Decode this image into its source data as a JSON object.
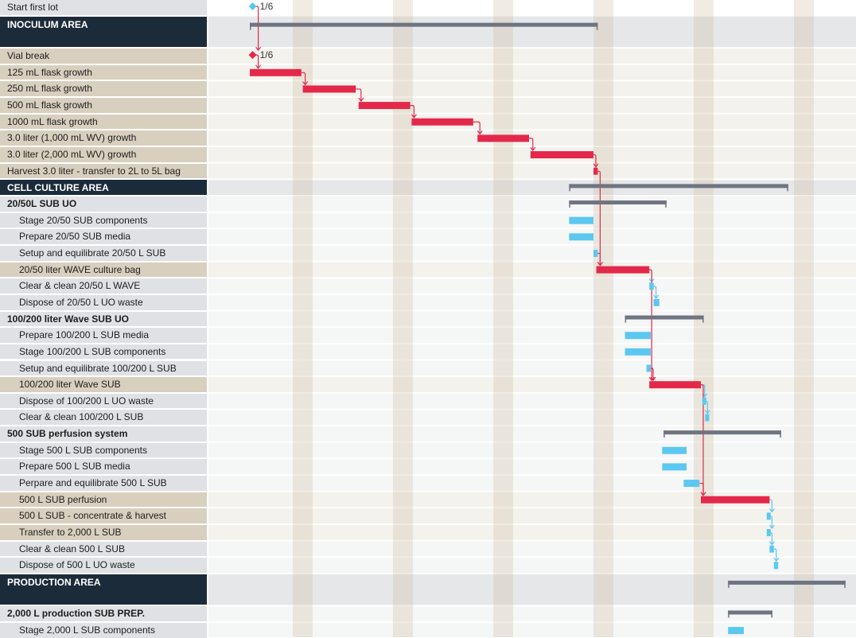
{
  "colors": {
    "critical": "#e4284b",
    "task": "#5bc8f0",
    "summary": "#6f7480",
    "header": "#1c2b3a",
    "tan": "#d9cfbe",
    "grey": "#dfe1e5",
    "weekend": "#e9e4d8"
  },
  "chart_data": {
    "type": "gantt",
    "time_unit": "days",
    "weekend_days": [
      3,
      10,
      17,
      24,
      31,
      38
    ],
    "rows": [
      {
        "label": "Start first lot",
        "kind": "milestone",
        "milestone": {
          "day": 0.2,
          "label": "1/6",
          "color": "task"
        }
      },
      {
        "label": "INOCULUM AREA",
        "kind": "header",
        "tall": true,
        "bar": {
          "start": 0,
          "end": 24.3,
          "type": "summary"
        }
      },
      {
        "label": "Vial break",
        "kind": "tan",
        "milestone": {
          "day": 0.2,
          "label": "1/6",
          "color": "critical"
        }
      },
      {
        "label": "125 mL flask growth",
        "kind": "tan",
        "bar": {
          "start": 0,
          "end": 3.6,
          "type": "critical"
        }
      },
      {
        "label": "250 mL flask growth",
        "kind": "tan",
        "bar": {
          "start": 3.7,
          "end": 7.4,
          "type": "critical"
        }
      },
      {
        "label": "500 mL flask growth",
        "kind": "tan",
        "bar": {
          "start": 7.6,
          "end": 11.2,
          "type": "critical"
        }
      },
      {
        "label": "1000 mL flask growth",
        "kind": "tan",
        "bar": {
          "start": 11.3,
          "end": 15.6,
          "type": "critical"
        }
      },
      {
        "label": "3.0 liter (1,000 mL WV) growth",
        "kind": "tan",
        "bar": {
          "start": 15.9,
          "end": 19.5,
          "type": "critical"
        }
      },
      {
        "label": "3.0 liter (2,000 mL WV) growth",
        "kind": "tan",
        "bar": {
          "start": 19.6,
          "end": 24,
          "type": "critical"
        }
      },
      {
        "label": "Harvest 3.0 liter - transfer to 2L to 5L bag",
        "kind": "tan",
        "bar": {
          "start": 24,
          "end": 24.3,
          "type": "critical"
        }
      },
      {
        "label": "CELL CULTURE AREA",
        "kind": "header",
        "bar": {
          "start": 22.3,
          "end": 37.6,
          "type": "summary"
        }
      },
      {
        "label": "20/50L SUB UO",
        "kind": "group",
        "bar": {
          "start": 22.3,
          "end": 29.1,
          "type": "summary"
        }
      },
      {
        "label": "Stage 20/50 SUB components",
        "kind": "grey",
        "bar": {
          "start": 22.3,
          "end": 24,
          "type": "task"
        }
      },
      {
        "label": "Prepare 20/50 SUB media",
        "kind": "grey",
        "bar": {
          "start": 22.3,
          "end": 24,
          "type": "task"
        }
      },
      {
        "label": "Setup and equilibrate 20/50 L SUB",
        "kind": "grey",
        "bar": {
          "start": 24,
          "end": 24.3,
          "type": "task"
        }
      },
      {
        "label": "20/50 liter WAVE culture bag",
        "kind": "tan",
        "bar": {
          "start": 24.2,
          "end": 27.9,
          "type": "critical"
        }
      },
      {
        "label": "Clear & clean 20/50 L WAVE",
        "kind": "grey",
        "bar": {
          "start": 27.9,
          "end": 28.2,
          "type": "task"
        }
      },
      {
        "label": "Dispose of 20/50 L UO waste",
        "kind": "grey",
        "bar": {
          "start": 28.2,
          "end": 28.6,
          "type": "task"
        }
      },
      {
        "label": "100/200 liter Wave SUB UO",
        "kind": "group",
        "bar": {
          "start": 26.2,
          "end": 31.7,
          "type": "summary"
        }
      },
      {
        "label": "Prepare 100/200 L SUB media",
        "kind": "grey",
        "bar": {
          "start": 26.2,
          "end": 28,
          "type": "task"
        }
      },
      {
        "label": "Stage 100/200 L SUB components",
        "kind": "grey",
        "bar": {
          "start": 26.2,
          "end": 28,
          "type": "task"
        }
      },
      {
        "label": "Setup and equilibrate 100/200 L SUB",
        "kind": "grey",
        "bar": {
          "start": 27.7,
          "end": 28,
          "type": "task"
        }
      },
      {
        "label": "100/200 liter Wave SUB",
        "kind": "tan",
        "bar": {
          "start": 27.9,
          "end": 31.5,
          "type": "critical"
        }
      },
      {
        "label": "Dispose of 100/200 L UO waste",
        "kind": "grey",
        "bar": {
          "start": 31.6,
          "end": 31.8,
          "type": "task"
        }
      },
      {
        "label": "Clear & clean 100/200 L SUB",
        "kind": "grey",
        "bar": {
          "start": 31.8,
          "end": 32,
          "type": "task"
        }
      },
      {
        "label": "500 SUB perfusion system",
        "kind": "group",
        "bar": {
          "start": 28.9,
          "end": 37.1,
          "type": "summary"
        }
      },
      {
        "label": "Stage 500 L SUB components",
        "kind": "grey",
        "bar": {
          "start": 28.8,
          "end": 30.5,
          "type": "task"
        }
      },
      {
        "label": "Prepare 500 L SUB media",
        "kind": "grey",
        "bar": {
          "start": 28.8,
          "end": 30.5,
          "type": "task"
        }
      },
      {
        "label": "Perpare and equilibrate 500 L SUB",
        "kind": "grey",
        "bar": {
          "start": 30.3,
          "end": 31.4,
          "type": "task"
        }
      },
      {
        "label": "500 L SUB perfusion",
        "kind": "tan",
        "bar": {
          "start": 31.5,
          "end": 36.3,
          "type": "critical"
        }
      },
      {
        "label": "500 L SUB - concentrate & harvest",
        "kind": "tan",
        "bar": {
          "start": 36.1,
          "end": 36.3,
          "type": "task"
        }
      },
      {
        "label": "Transfer to 2,000 L SUB",
        "kind": "tan",
        "bar": {
          "start": 36.1,
          "end": 36.3,
          "type": "task"
        }
      },
      {
        "label": "Clear & clean 500 L SUB",
        "kind": "grey",
        "bar": {
          "start": 36.3,
          "end": 36.6,
          "type": "task"
        }
      },
      {
        "label": "Dispose of 500 L UO waste",
        "kind": "grey",
        "bar": {
          "start": 36.6,
          "end": 36.9,
          "type": "task"
        }
      },
      {
        "label": "PRODUCTION AREA",
        "kind": "header",
        "tall": true,
        "bar": {
          "start": 33.4,
          "end": 41.6,
          "type": "summary"
        }
      },
      {
        "label": "2,000 L production SUB PREP.",
        "kind": "group",
        "bar": {
          "start": 33.4,
          "end": 36.5,
          "type": "summary"
        }
      },
      {
        "label": "Stage 2,000 L SUB components",
        "kind": "grey",
        "bar": {
          "start": 33.4,
          "end": 34.5,
          "type": "task"
        }
      }
    ],
    "links": [
      [
        0,
        2
      ],
      [
        2,
        3
      ],
      [
        3,
        4
      ],
      [
        4,
        5
      ],
      [
        5,
        6
      ],
      [
        6,
        7
      ],
      [
        7,
        8
      ],
      [
        8,
        9
      ],
      [
        9,
        15
      ],
      [
        14,
        15
      ],
      [
        15,
        16
      ],
      [
        16,
        17
      ],
      [
        15,
        22
      ],
      [
        21,
        22
      ],
      [
        22,
        23
      ],
      [
        23,
        24
      ],
      [
        22,
        29
      ],
      [
        28,
        29
      ],
      [
        29,
        30
      ],
      [
        30,
        31
      ],
      [
        31,
        32
      ],
      [
        32,
        33
      ]
    ]
  }
}
